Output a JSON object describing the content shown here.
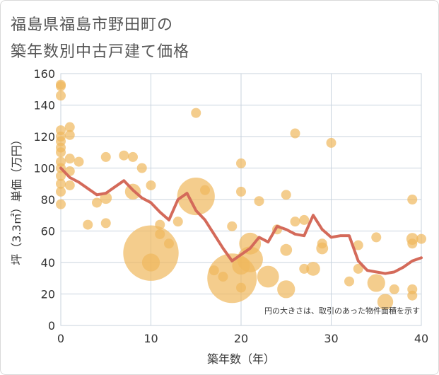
{
  "title_line1": "福島県福島市野田町の",
  "title_line2": "築年数別中古戸建て価格",
  "chart_data": {
    "type": "scatter",
    "xlabel": "築年数（年）",
    "ylabel": "坪（3.3㎡）単価（万円）",
    "xlim": [
      0,
      40
    ],
    "ylim": [
      0,
      160
    ],
    "xticks": [
      0,
      10,
      20,
      30,
      40
    ],
    "yticks": [
      0,
      20,
      40,
      60,
      80,
      100,
      120,
      140,
      160
    ],
    "grid": true,
    "annotation": "円の大きさは、取引のあった物件面積を示す",
    "colors": {
      "bubble": "#f0b85c",
      "line": "#d46a5a",
      "grid": "#c8d3de"
    },
    "points": [
      {
        "x": 0,
        "y": 153,
        "s": 1
      },
      {
        "x": 0,
        "y": 152,
        "s": 1
      },
      {
        "x": 0,
        "y": 146,
        "s": 1
      },
      {
        "x": 0,
        "y": 124,
        "s": 1
      },
      {
        "x": 0,
        "y": 120,
        "s": 1
      },
      {
        "x": 0,
        "y": 117,
        "s": 1
      },
      {
        "x": 0,
        "y": 113,
        "s": 1
      },
      {
        "x": 0,
        "y": 110,
        "s": 1
      },
      {
        "x": 0,
        "y": 104,
        "s": 1
      },
      {
        "x": 0,
        "y": 100,
        "s": 1
      },
      {
        "x": 0,
        "y": 95,
        "s": 1
      },
      {
        "x": 0,
        "y": 90,
        "s": 1
      },
      {
        "x": 0,
        "y": 85,
        "s": 1
      },
      {
        "x": 0,
        "y": 77,
        "s": 1
      },
      {
        "x": 1,
        "y": 126,
        "s": 1
      },
      {
        "x": 1,
        "y": 121,
        "s": 1
      },
      {
        "x": 1,
        "y": 106,
        "s": 1
      },
      {
        "x": 1,
        "y": 98,
        "s": 1
      },
      {
        "x": 1,
        "y": 89,
        "s": 1
      },
      {
        "x": 2,
        "y": 104,
        "s": 1
      },
      {
        "x": 3,
        "y": 64,
        "s": 1
      },
      {
        "x": 4,
        "y": 78,
        "s": 1
      },
      {
        "x": 5,
        "y": 107,
        "s": 1
      },
      {
        "x": 5,
        "y": 81,
        "s": 1.2
      },
      {
        "x": 5,
        "y": 65,
        "s": 1
      },
      {
        "x": 7,
        "y": 108,
        "s": 1
      },
      {
        "x": 8,
        "y": 107,
        "s": 1
      },
      {
        "x": 8,
        "y": 85,
        "s": 1.6
      },
      {
        "x": 9,
        "y": 100,
        "s": 1
      },
      {
        "x": 10,
        "y": 89,
        "s": 1
      },
      {
        "x": 10,
        "y": 46,
        "s": 5.6
      },
      {
        "x": 10,
        "y": 40,
        "s": 1.8
      },
      {
        "x": 11,
        "y": 64,
        "s": 1
      },
      {
        "x": 11,
        "y": 58,
        "s": 1
      },
      {
        "x": 12,
        "y": 52,
        "s": 1
      },
      {
        "x": 13,
        "y": 66,
        "s": 1
      },
      {
        "x": 15,
        "y": 135,
        "s": 1
      },
      {
        "x": 15,
        "y": 82,
        "s": 3.8
      },
      {
        "x": 16,
        "y": 86,
        "s": 1
      },
      {
        "x": 17,
        "y": 35,
        "s": 1
      },
      {
        "x": 18,
        "y": 31,
        "s": 1
      },
      {
        "x": 19,
        "y": 63,
        "s": 1
      },
      {
        "x": 19,
        "y": 30,
        "s": 5.0
      },
      {
        "x": 20,
        "y": 103,
        "s": 1
      },
      {
        "x": 20,
        "y": 85,
        "s": 1
      },
      {
        "x": 20,
        "y": 24,
        "s": 1
      },
      {
        "x": 21,
        "y": 52,
        "s": 2.2
      },
      {
        "x": 21,
        "y": 42,
        "s": 2.6
      },
      {
        "x": 20,
        "y": 38,
        "s": 1.8
      },
      {
        "x": 22,
        "y": 79,
        "s": 1
      },
      {
        "x": 23,
        "y": 31,
        "s": 2.2
      },
      {
        "x": 24,
        "y": 61,
        "s": 1
      },
      {
        "x": 25,
        "y": 83,
        "s": 1
      },
      {
        "x": 25,
        "y": 48,
        "s": 1.2
      },
      {
        "x": 25,
        "y": 23,
        "s": 1.8
      },
      {
        "x": 26,
        "y": 122,
        "s": 1
      },
      {
        "x": 26,
        "y": 66,
        "s": 1
      },
      {
        "x": 27,
        "y": 67,
        "s": 1
      },
      {
        "x": 27,
        "y": 36,
        "s": 1
      },
      {
        "x": 28,
        "y": 36,
        "s": 1.4
      },
      {
        "x": 29,
        "y": 52,
        "s": 1
      },
      {
        "x": 29,
        "y": 49,
        "s": 1.2
      },
      {
        "x": 30,
        "y": 116,
        "s": 1
      },
      {
        "x": 32,
        "y": 28,
        "s": 1
      },
      {
        "x": 33,
        "y": 51,
        "s": 1
      },
      {
        "x": 33,
        "y": 36,
        "s": 1
      },
      {
        "x": 35,
        "y": 56,
        "s": 1
      },
      {
        "x": 35,
        "y": 27,
        "s": 1.8
      },
      {
        "x": 36,
        "y": 15,
        "s": 1.6
      },
      {
        "x": 37,
        "y": 23,
        "s": 1
      },
      {
        "x": 39,
        "y": 80,
        "s": 1
      },
      {
        "x": 39,
        "y": 55,
        "s": 1.2
      },
      {
        "x": 39,
        "y": 52,
        "s": 1
      },
      {
        "x": 39,
        "y": 23,
        "s": 1
      },
      {
        "x": 39,
        "y": 19,
        "s": 1
      },
      {
        "x": 40,
        "y": 55,
        "s": 1
      }
    ],
    "line": {
      "x": [
        0,
        1,
        2,
        3,
        4,
        5,
        6,
        7,
        8,
        9,
        10,
        11,
        12,
        13,
        14,
        15,
        16,
        17,
        18,
        19,
        20,
        21,
        22,
        23,
        24,
        25,
        26,
        27,
        28,
        29,
        30,
        31,
        32,
        33,
        34,
        35,
        36,
        37,
        38,
        39,
        40
      ],
      "y": [
        100,
        94,
        91,
        87,
        83,
        84,
        88,
        92,
        86,
        81,
        78,
        72,
        67,
        80,
        84,
        73,
        67,
        58,
        49,
        41,
        45,
        49,
        56,
        53,
        63,
        61,
        58,
        57,
        70,
        61,
        56,
        57,
        57,
        41,
        35,
        34,
        33,
        34,
        37,
        41,
        43
      ]
    }
  }
}
